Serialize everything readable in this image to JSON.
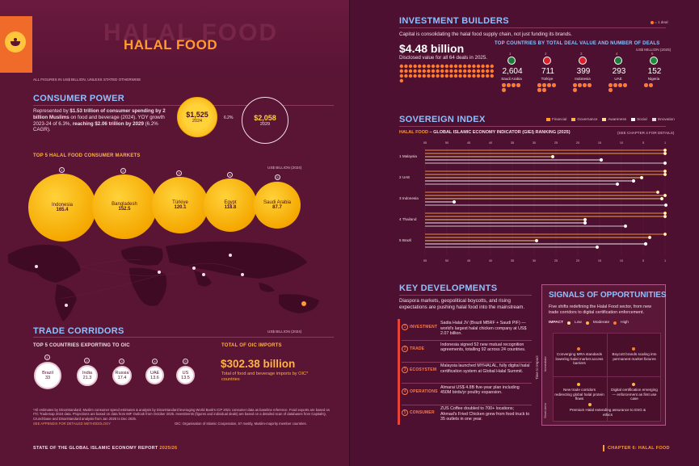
{
  "left": {
    "title": "HALAL FOOD",
    "title_shadow": "HALAL FOOD",
    "units_note": "ALL FIGURES IN US$ BILLION, UNLESS STATED OTHERWISE",
    "consumer_power": {
      "heading": "CONSUMER POWER",
      "text_a": "Represented by ",
      "text_b": "$1.53 trillion of consumer spending by 2 billion Muslims",
      "text_c": " on food and beverage (2024). YOY growth 2023-24 of 6.3%, ",
      "text_d": "reaching $2.06 trillion by 2029",
      "text_e": " (6.2% CAGR).",
      "bubble_2024_value": "$1,525",
      "bubble_2024_year": "2024",
      "cagr": "6.2%",
      "bubble_2029_value": "$2,058",
      "bubble_2029_year": "2029"
    },
    "top_markets": {
      "heading": "TOP 5 HALAL FOOD CONSUMER MARKETS",
      "unit": "US$ BILLION (2024)",
      "items": [
        {
          "rank": "1",
          "name": "Indonesia",
          "value": "165.4"
        },
        {
          "rank": "2",
          "name": "Bangladesh",
          "value": "152.5"
        },
        {
          "rank": "3",
          "name": "Türkiye",
          "value": "120.1"
        },
        {
          "rank": "4",
          "name": "Egypt",
          "value": "118.8"
        },
        {
          "rank": "5",
          "name": "Saudi Arabia",
          "value": "87.7"
        }
      ]
    },
    "trade": {
      "heading": "TRADE CORRIDORS",
      "unit": "US$ BILLION (2024)",
      "exporters_heading": "TOP 5 COUNTRIES EXPORTING TO OIC",
      "exporters": [
        {
          "rank": "1",
          "name": "Brazil",
          "value": "33"
        },
        {
          "rank": "2",
          "name": "India",
          "value": "21.3"
        },
        {
          "rank": "3",
          "name": "Russia",
          "value": "17.4"
        },
        {
          "rank": "4",
          "name": "UAE",
          "value": "13.6"
        },
        {
          "rank": "5",
          "name": "US",
          "value": "13.5"
        }
      ],
      "imports_heading": "TOTAL OF OIC IMPORTS",
      "imports_value": "$302.38 billion",
      "imports_desc": "Total of food and beverage imports by OIC* countries"
    },
    "footnote": "*All estimates by DinarStandard; Muslim consumer spend estimates & analysis by DinarStandard leveraging World Bank's ICP 2021 consumer data as baseline reference. Food exports are based on ITC Trademap 2024 data. Projections are based on data from IMF Outlook from October 2025. Investments (figures and individual deals) are based on a detailed scan of databases from CapitalIQ, Crunchbase and DinarStandard analysis from Jan 2025 to Dec 2025.",
    "footnote_link": "SEE APPENDIX FOR DETAILED METHODOLOGY",
    "footnote_oic": "OIC: Organisation of Islamic Cooperation, 57 mostly, Muslim-majority member countries.",
    "footer": "STATE OF THE GLOBAL ISLAMIC ECONOMY REPORT 2025/26",
    "footer_main": "STATE OF THE GLOBAL ISLAMIC ECONOMY REPORT ",
    "footer_year": "2025/26"
  },
  "right": {
    "investment": {
      "heading": "INVESTMENT BUILDERS",
      "legend": "= 1 deal",
      "intro": "Capital is consolidating the halal food supply chain, not just funding its brands.",
      "value": "$4.48 billion",
      "value_desc": "Disclosed value for all 64 deals in 2025.",
      "top_heading": "TOP COUNTRIES BY TOTAL DEAL VALUE AND NUMBER OF DEALS",
      "unit": "US$ MILLION (2025)",
      "countries": [
        {
          "rank": "1",
          "name": "Saudi Arabia",
          "value": "2,604",
          "deals": 5,
          "color": "#1e7a3a"
        },
        {
          "rank": "2",
          "name": "Türkiye",
          "value": "711",
          "deals": 6,
          "color": "#d8202a"
        },
        {
          "rank": "3",
          "name": "Indonesia",
          "value": "399",
          "deals": 5,
          "color": "#d8202a"
        },
        {
          "rank": "4",
          "name": "UAE",
          "value": "293",
          "deals": 5,
          "color": "#1e7a3a"
        },
        {
          "rank": "5",
          "name": "Nigeria",
          "value": "152",
          "deals": 2,
          "color": "#1e8a3a"
        }
      ]
    },
    "sovereign": {
      "heading": "SOVEREIGN INDEX",
      "legend": [
        "Financial",
        "Governance",
        "Awareness",
        "Social",
        "Innovation"
      ],
      "legend_colors": [
        "#ff9b2f",
        "#ffb347",
        "#ffe08a",
        "#ffffff",
        "#dcdcdc"
      ],
      "subtitle_a": "HALAL FOOD",
      "subtitle_b": " – GLOBAL ISLAMIC ECONOMY INDICATOR (GIEI) RANKING (2025)",
      "see": "(SEE CHAPTER 4 FOR DETAILS)",
      "ticks": [
        "55",
        "50",
        "45",
        "40",
        "35",
        "30",
        "25",
        "20",
        "15",
        "10",
        "5",
        "1"
      ],
      "countries": [
        {
          "rank": "1",
          "name": "Malaysia"
        },
        {
          "rank": "2",
          "name": "UAE"
        },
        {
          "rank": "3",
          "name": "Indonesia"
        },
        {
          "rank": "4",
          "name": "Thailand"
        },
        {
          "rank": "5",
          "name": "Brazil"
        }
      ]
    },
    "key_dev": {
      "heading": "KEY DEVELOPMENTS",
      "intro": "Diaspora markets, geopolitical boycotts, and rising expectations are pushing halal food into the mainstream.",
      "items": [
        {
          "num": "1",
          "label": "INVESTMENT",
          "text": "Sadia Halal JV (Brazil MBRF + Saudi PIF) — world's largest halal chicken company at US$ 2.07 billion."
        },
        {
          "num": "2",
          "label": "TRADE",
          "text": "Indonesia signed 52 new mutual recognition agreements, totalling 92 across 24 countries."
        },
        {
          "num": "3",
          "label": "ECOSYSTEM",
          "text": "Malaysia launched MYHALAL, fully digital halal certification system at Global Halal Summit."
        },
        {
          "num": "4",
          "label": "OPERATIONS",
          "text": "Almarai US$ 4.8B five-year plan including 450M birds/yr poultry expansion."
        },
        {
          "num": "5",
          "label": "CONSUMER",
          "text": "ZUS Coffee doubled to 700+ locations; Ahmad's Fried Chicken grew from food truck to 35 outlets in one year."
        }
      ]
    },
    "signals": {
      "heading": "SIGNALS OF OPPORTUNITIES",
      "intro": "Five shifts redefining the Halal Food sector, from new trade corridors to digital certification enforcement.",
      "impact_label": "IMPACT",
      "impact_levels": [
        "Low",
        "Moderate",
        "High"
      ],
      "axis_label": "Time to Impact",
      "axis_imm": "Immediate",
      "axis_st": "Short-term",
      "items": [
        "Converging MRA standards lowering halal market access barriers",
        "Boycott brands scaling into permanent market fixtures",
        "New trade corridors redirecting global halal protein flows",
        "Digital certification emerging — enforcement as first use case",
        "Premium Halal extending assurance to ESG & ethics"
      ]
    },
    "footer": "CHAPTER 6: HALAL FOOD"
  }
}
